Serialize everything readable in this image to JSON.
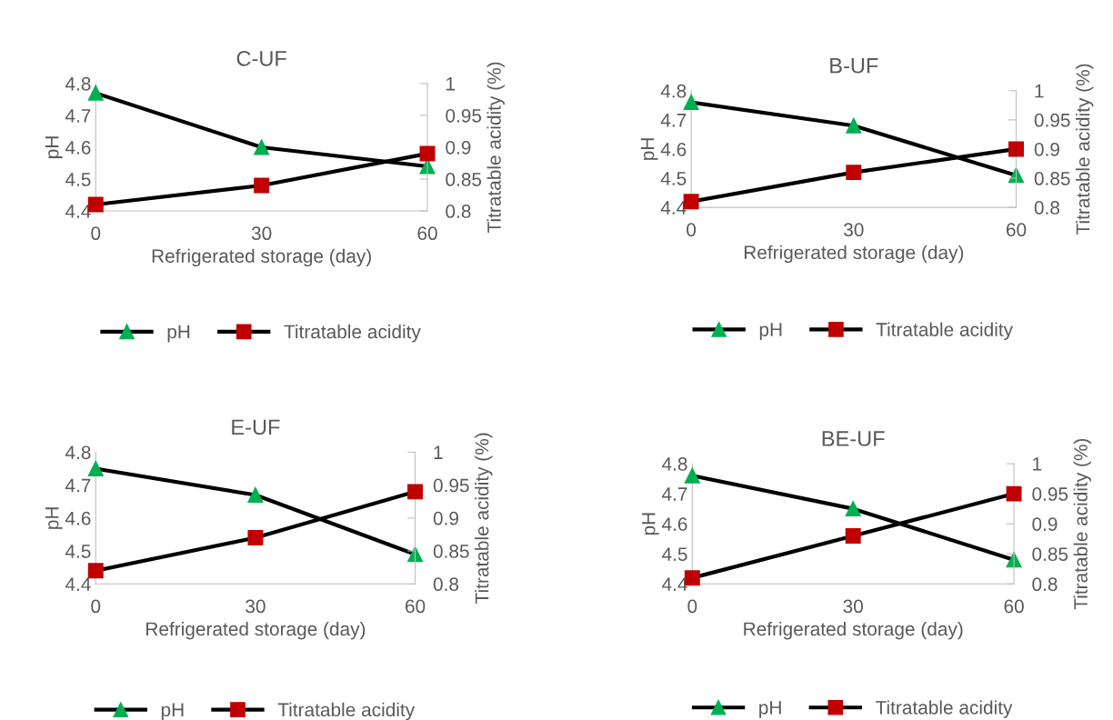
{
  "chart_data": [
    {
      "type": "line",
      "title": "C-UF",
      "xlabel": "Refrigerated storage (day)",
      "ylabel": "pH",
      "y2label": "Titratable acidity (%)",
      "x": [
        0,
        30,
        60
      ],
      "xlim": [
        0,
        60
      ],
      "xticks": [
        0,
        30,
        60
      ],
      "ylim": [
        4.4,
        4.8
      ],
      "yticks": [
        4.4,
        4.5,
        4.6,
        4.7,
        4.8
      ],
      "y2lim": [
        0.8,
        1
      ],
      "y2ticks": [
        0.8,
        0.85,
        0.9,
        0.95,
        1
      ],
      "grid": false,
      "legend": "bottom",
      "line_style": "solid",
      "series": [
        {
          "name": "pH",
          "color": "#00b050",
          "marker": "triangle",
          "values": [
            4.77,
            4.6,
            4.54
          ]
        },
        {
          "name": "Titratable acidity",
          "color": "#c00000",
          "marker": "square",
          "axis": "y2",
          "values": [
            0.81,
            0.84,
            0.89
          ]
        }
      ]
    },
    {
      "type": "line",
      "title": "B-UF",
      "xlabel": "Refrigerated storage (day)",
      "ylabel": "pH",
      "y2label": "Titratable acidity (%)",
      "x": [
        0,
        30,
        60
      ],
      "xlim": [
        0,
        60
      ],
      "xticks": [
        0,
        30,
        60
      ],
      "ylim": [
        4.4,
        4.8
      ],
      "yticks": [
        4.4,
        4.5,
        4.6,
        4.7,
        4.8
      ],
      "y2lim": [
        0.8,
        1
      ],
      "y2ticks": [
        0.8,
        0.85,
        0.9,
        0.95,
        1
      ],
      "grid": false,
      "legend": "bottom",
      "line_style": "solid",
      "series": [
        {
          "name": "pH",
          "color": "#00b050",
          "marker": "triangle",
          "values": [
            4.76,
            4.68,
            4.51
          ]
        },
        {
          "name": "Titratable acidity",
          "color": "#c00000",
          "marker": "square",
          "axis": "y2",
          "values": [
            0.81,
            0.86,
            0.9
          ]
        }
      ]
    },
    {
      "type": "line",
      "title": "E-UF",
      "xlabel": "Refrigerated storage (day)",
      "ylabel": "pH",
      "y2label": "Titratable acidity (%)",
      "x": [
        0,
        30,
        60
      ],
      "xlim": [
        0,
        60
      ],
      "xticks": [
        0,
        30,
        60
      ],
      "ylim": [
        4.4,
        4.8
      ],
      "yticks": [
        4.4,
        4.5,
        4.6,
        4.7,
        4.8
      ],
      "y2lim": [
        0.8,
        1
      ],
      "y2ticks": [
        0.8,
        0.85,
        0.9,
        0.95,
        1
      ],
      "grid": false,
      "legend": "bottom",
      "line_style": "solid",
      "series": [
        {
          "name": "pH",
          "color": "#00b050",
          "marker": "triangle",
          "values": [
            4.75,
            4.67,
            4.49
          ]
        },
        {
          "name": "Titratable acidity",
          "color": "#c00000",
          "marker": "square",
          "axis": "y2",
          "values": [
            0.82,
            0.87,
            0.94
          ]
        }
      ]
    },
    {
      "type": "line",
      "title": "BE-UF",
      "xlabel": "Refrigerated storage (day)",
      "ylabel": "pH",
      "y2label": "Titratable acidity (%)",
      "x": [
        0,
        30,
        60
      ],
      "xlim": [
        0,
        60
      ],
      "xticks": [
        0,
        30,
        60
      ],
      "ylim": [
        4.4,
        4.8
      ],
      "yticks": [
        4.4,
        4.5,
        4.6,
        4.7,
        4.8
      ],
      "y2lim": [
        0.8,
        1
      ],
      "y2ticks": [
        0.8,
        0.85,
        0.9,
        0.95,
        1
      ],
      "grid": false,
      "legend": "bottom",
      "line_style": "solid",
      "series": [
        {
          "name": "pH",
          "color": "#00b050",
          "marker": "triangle",
          "values": [
            4.76,
            4.65,
            4.48
          ]
        },
        {
          "name": "Titratable acidity",
          "color": "#c00000",
          "marker": "square",
          "axis": "y2",
          "values": [
            0.81,
            0.88,
            0.95
          ]
        }
      ]
    }
  ]
}
